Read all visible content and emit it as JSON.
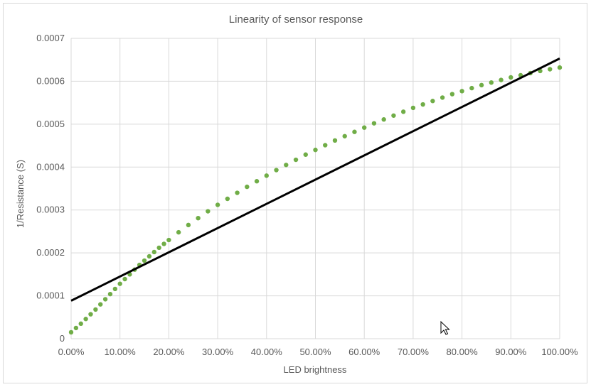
{
  "chart_data": {
    "type": "scatter",
    "title": "Linearity of sensor response",
    "xlabel": "LED brightness",
    "ylabel": "1/Resistance (S)",
    "xlim": [
      0,
      1
    ],
    "ylim": [
      0,
      0.0007
    ],
    "x_ticks": [
      "0.00%",
      "10.00%",
      "20.00%",
      "30.00%",
      "40.00%",
      "50.00%",
      "60.00%",
      "70.00%",
      "80.00%",
      "90.00%",
      "100.00%"
    ],
    "y_ticks": [
      "0",
      "0.0001",
      "0.0002",
      "0.0003",
      "0.0004",
      "0.0005",
      "0.0006",
      "0.0007"
    ],
    "grid": true,
    "legend": "none",
    "colors": {
      "points": "#70ad47",
      "trendline": "#000000",
      "grid": "#d9d9d9"
    },
    "series": [
      {
        "marker": "circle",
        "x": [
          0.0,
          0.01,
          0.02,
          0.03,
          0.04,
          0.05,
          0.06,
          0.07,
          0.08,
          0.09,
          0.1,
          0.11,
          0.12,
          0.13,
          0.14,
          0.15,
          0.16,
          0.17,
          0.18,
          0.19,
          0.2,
          0.22,
          0.24,
          0.26,
          0.28,
          0.3,
          0.32,
          0.34,
          0.36,
          0.38,
          0.4,
          0.42,
          0.44,
          0.46,
          0.48,
          0.5,
          0.52,
          0.54,
          0.56,
          0.58,
          0.6,
          0.62,
          0.64,
          0.66,
          0.68,
          0.7,
          0.72,
          0.74,
          0.76,
          0.78,
          0.8,
          0.82,
          0.84,
          0.86,
          0.88,
          0.9,
          0.92,
          0.94,
          0.96,
          0.98,
          1.0
        ],
        "y": [
          1.5e-05,
          2.5e-05,
          3.5e-05,
          4.6e-05,
          5.7e-05,
          6.8e-05,
          8e-05,
          9.2e-05,
          0.000104,
          0.000116,
          0.000128,
          0.000139,
          0.00015,
          0.000161,
          0.000172,
          0.000182,
          0.000192,
          0.000202,
          0.000212,
          0.000221,
          0.00023,
          0.000248,
          0.000265,
          0.000281,
          0.000297,
          0.000312,
          0.000326,
          0.00034,
          0.000354,
          0.000367,
          0.00038,
          0.000393,
          0.000405,
          0.000417,
          0.000429,
          0.00044,
          0.000451,
          0.000462,
          0.000472,
          0.000482,
          0.000492,
          0.000502,
          0.000511,
          0.00052,
          0.000529,
          0.000538,
          0.000546,
          0.000554,
          0.000562,
          0.00057,
          0.000577,
          0.000584,
          0.000591,
          0.000597,
          0.000603,
          0.000609,
          0.000614,
          0.000619,
          0.000624,
          0.000628,
          0.000632
        ]
      }
    ],
    "trendline": {
      "type": "linear",
      "x": [
        0,
        1
      ],
      "y": [
        8.85e-05,
        0.000653
      ]
    }
  }
}
